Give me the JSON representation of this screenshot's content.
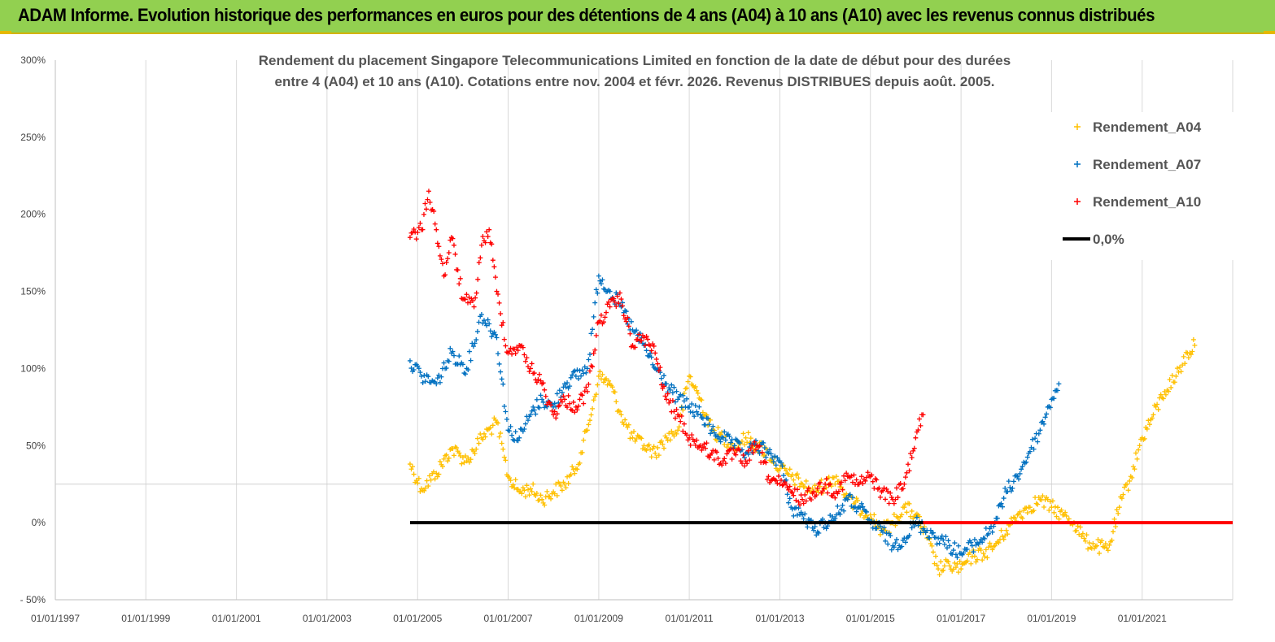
{
  "header": {
    "title": "ADAM Informe. Evolution historique des performances en euros pour des détentions de 4 ans (A04) à 10 ans (A10) avec les revenus connus distribués"
  },
  "colors": {
    "banner": "#92d050",
    "A04": "#ffc000",
    "A07": "#0070c0",
    "A10": "#ff0000",
    "zero_line": "#000000"
  },
  "chart_data": {
    "type": "scatter",
    "title_lines": [
      "Rendement du placement Singapore Telecommunications Limited en fonction de la date de début pour des durées",
      "entre 4 (A04) et 10 ans (A10).  Cotations entre nov. 2004 et févr. 2026. Revenus DISTRIBUES depuis août. 2005."
    ],
    "xlim": [
      "1997-01-01",
      "2023-01-01"
    ],
    "ylim": [
      -50,
      300
    ],
    "y_ticks": [
      -50,
      0,
      50,
      100,
      150,
      200,
      250,
      300
    ],
    "y_tick_labels": [
      "- 50%",
      "0%",
      "50%",
      "100%",
      "150%",
      "200%",
      "250%",
      "300%"
    ],
    "x_tick_labels": [
      "01/01/1997",
      "01/01/1999",
      "01/01/2001",
      "01/01/2003",
      "01/01/2005",
      "01/01/2007",
      "01/01/2009",
      "01/01/2011",
      "01/01/2013",
      "01/01/2015",
      "01/01/2017",
      "01/01/2019",
      "01/01/2021"
    ],
    "grid": "vertical",
    "legend_position": "top-right",
    "series": [
      {
        "name": "Rendement_A04",
        "color": "#ffc000",
        "x": [
          "2004-11-01",
          "2005-02-01",
          "2005-06-01",
          "2005-10-01",
          "2006-02-01",
          "2006-06-01",
          "2006-10-01",
          "2007-01-01",
          "2007-04-01",
          "2007-07-01",
          "2007-10-01",
          "2008-01-01",
          "2008-04-01",
          "2008-07-01",
          "2008-10-01",
          "2009-01-01",
          "2009-04-01",
          "2009-07-01",
          "2009-10-01",
          "2010-01-01",
          "2010-04-01",
          "2010-07-01",
          "2010-10-01",
          "2011-01-01",
          "2011-04-01",
          "2011-07-01",
          "2011-10-01",
          "2012-01-01",
          "2012-04-01",
          "2012-07-01",
          "2012-10-01",
          "2013-01-01",
          "2013-04-01",
          "2013-07-01",
          "2013-10-01",
          "2014-01-01",
          "2014-04-01",
          "2014-07-01",
          "2014-10-01",
          "2015-01-01",
          "2015-04-01",
          "2015-07-01",
          "2015-10-01",
          "2016-01-01",
          "2016-04-01",
          "2016-07-01",
          "2016-10-01",
          "2017-01-01",
          "2017-04-01",
          "2017-07-01",
          "2017-10-01",
          "2018-01-01",
          "2018-04-01",
          "2018-07-01",
          "2018-10-01",
          "2019-01-01",
          "2019-04-01",
          "2019-07-01",
          "2019-10-01",
          "2020-01-01",
          "2020-04-01",
          "2020-07-01",
          "2020-10-01",
          "2021-01-01",
          "2021-04-01",
          "2021-07-01",
          "2021-10-01",
          "2022-01-01",
          "2022-03-01"
        ],
        "y": [
          38,
          22,
          32,
          48,
          40,
          55,
          65,
          30,
          20,
          22,
          15,
          20,
          25,
          35,
          60,
          95,
          90,
          70,
          55,
          50,
          45,
          55,
          60,
          95,
          80,
          60,
          55,
          50,
          55,
          50,
          45,
          35,
          30,
          25,
          20,
          25,
          30,
          15,
          10,
          5,
          -5,
          0,
          10,
          5,
          -10,
          -30,
          -28,
          -30,
          -22,
          -20,
          -15,
          -5,
          5,
          10,
          15,
          10,
          5,
          0,
          -12,
          -15,
          -18,
          10,
          30,
          55,
          70,
          85,
          95,
          110,
          115
        ]
      },
      {
        "name": "Rendement_A07",
        "color": "#0070c0",
        "x": [
          "2004-11-01",
          "2005-02-01",
          "2005-06-01",
          "2005-10-01",
          "2006-02-01",
          "2006-06-01",
          "2006-10-01",
          "2007-01-01",
          "2007-04-01",
          "2007-07-01",
          "2007-10-01",
          "2008-01-01",
          "2008-04-01",
          "2008-07-01",
          "2008-10-01",
          "2009-01-01",
          "2009-04-01",
          "2009-07-01",
          "2009-10-01",
          "2010-01-01",
          "2010-04-01",
          "2010-07-01",
          "2010-10-01",
          "2011-01-01",
          "2011-04-01",
          "2011-07-01",
          "2011-10-01",
          "2012-01-01",
          "2012-04-01",
          "2012-07-01",
          "2012-10-01",
          "2013-01-01",
          "2013-04-01",
          "2013-07-01",
          "2013-10-01",
          "2014-01-01",
          "2014-04-01",
          "2014-07-01",
          "2014-10-01",
          "2015-01-01",
          "2015-04-01",
          "2015-07-01",
          "2015-10-01",
          "2016-01-01",
          "2016-04-01",
          "2016-07-01",
          "2016-10-01",
          "2017-01-01",
          "2017-04-01",
          "2017-07-01",
          "2017-10-01",
          "2018-01-01",
          "2018-04-01",
          "2018-07-01",
          "2018-10-01",
          "2019-01-01",
          "2019-03-01"
        ],
        "y": [
          105,
          95,
          90,
          110,
          100,
          135,
          120,
          60,
          55,
          70,
          80,
          75,
          90,
          95,
          100,
          160,
          150,
          140,
          125,
          115,
          100,
          90,
          80,
          75,
          70,
          60,
          55,
          50,
          45,
          50,
          45,
          40,
          10,
          5,
          -5,
          0,
          5,
          15,
          10,
          0,
          -5,
          -15,
          -10,
          0,
          -5,
          -10,
          -15,
          -20,
          -15,
          -10,
          0,
          20,
          30,
          45,
          60,
          80,
          90
        ]
      },
      {
        "name": "Rendement_A10",
        "color": "#ff0000",
        "x": [
          "2004-11-01",
          "2005-02-01",
          "2005-04-01",
          "2005-06-01",
          "2005-08-01",
          "2005-10-01",
          "2006-01-01",
          "2006-04-01",
          "2006-06-01",
          "2006-08-01",
          "2006-10-01",
          "2007-01-01",
          "2007-04-01",
          "2007-07-01",
          "2007-10-01",
          "2008-01-01",
          "2008-04-01",
          "2008-07-01",
          "2008-10-01",
          "2009-01-01",
          "2009-04-01",
          "2009-07-01",
          "2009-10-01",
          "2010-01-01",
          "2010-04-01",
          "2010-07-01",
          "2010-10-01",
          "2011-01-01",
          "2011-04-01",
          "2011-07-01",
          "2011-10-01",
          "2012-01-01",
          "2012-04-01",
          "2012-07-01",
          "2012-10-01",
          "2013-01-01",
          "2013-04-01",
          "2013-07-01",
          "2013-10-01",
          "2014-01-01",
          "2014-04-01",
          "2014-07-01",
          "2014-10-01",
          "2015-01-01",
          "2015-04-01",
          "2015-07-01",
          "2015-10-01",
          "2016-01-01",
          "2016-03-01"
        ],
        "y": [
          185,
          190,
          215,
          190,
          160,
          185,
          145,
          140,
          180,
          190,
          150,
          110,
          115,
          100,
          90,
          70,
          80,
          75,
          85,
          130,
          140,
          145,
          115,
          120,
          110,
          80,
          70,
          55,
          50,
          45,
          40,
          45,
          40,
          50,
          30,
          25,
          20,
          15,
          20,
          25,
          20,
          30,
          25,
          30,
          20,
          15,
          25,
          55,
          70
        ]
      },
      {
        "name": "0,0%",
        "color": "#000000",
        "x": [
          "2004-11-01",
          "2016-03-01"
        ],
        "y": [
          0,
          0
        ]
      },
      {
        "name": "Rendement_A10 (0)",
        "color": "#ff0000",
        "x": [
          "2016-03-01",
          "2023-01-01"
        ],
        "y": [
          0,
          0
        ]
      }
    ],
    "legend": [
      {
        "label": "Rendement_A04",
        "color": "#ffc000",
        "marker": "+"
      },
      {
        "label": "Rendement_A07",
        "color": "#0070c0",
        "marker": "+"
      },
      {
        "label": "Rendement_A10",
        "color": "#ff0000",
        "marker": "+"
      },
      {
        "label": "0,0%",
        "color": "#000000",
        "marker": "line"
      }
    ]
  }
}
